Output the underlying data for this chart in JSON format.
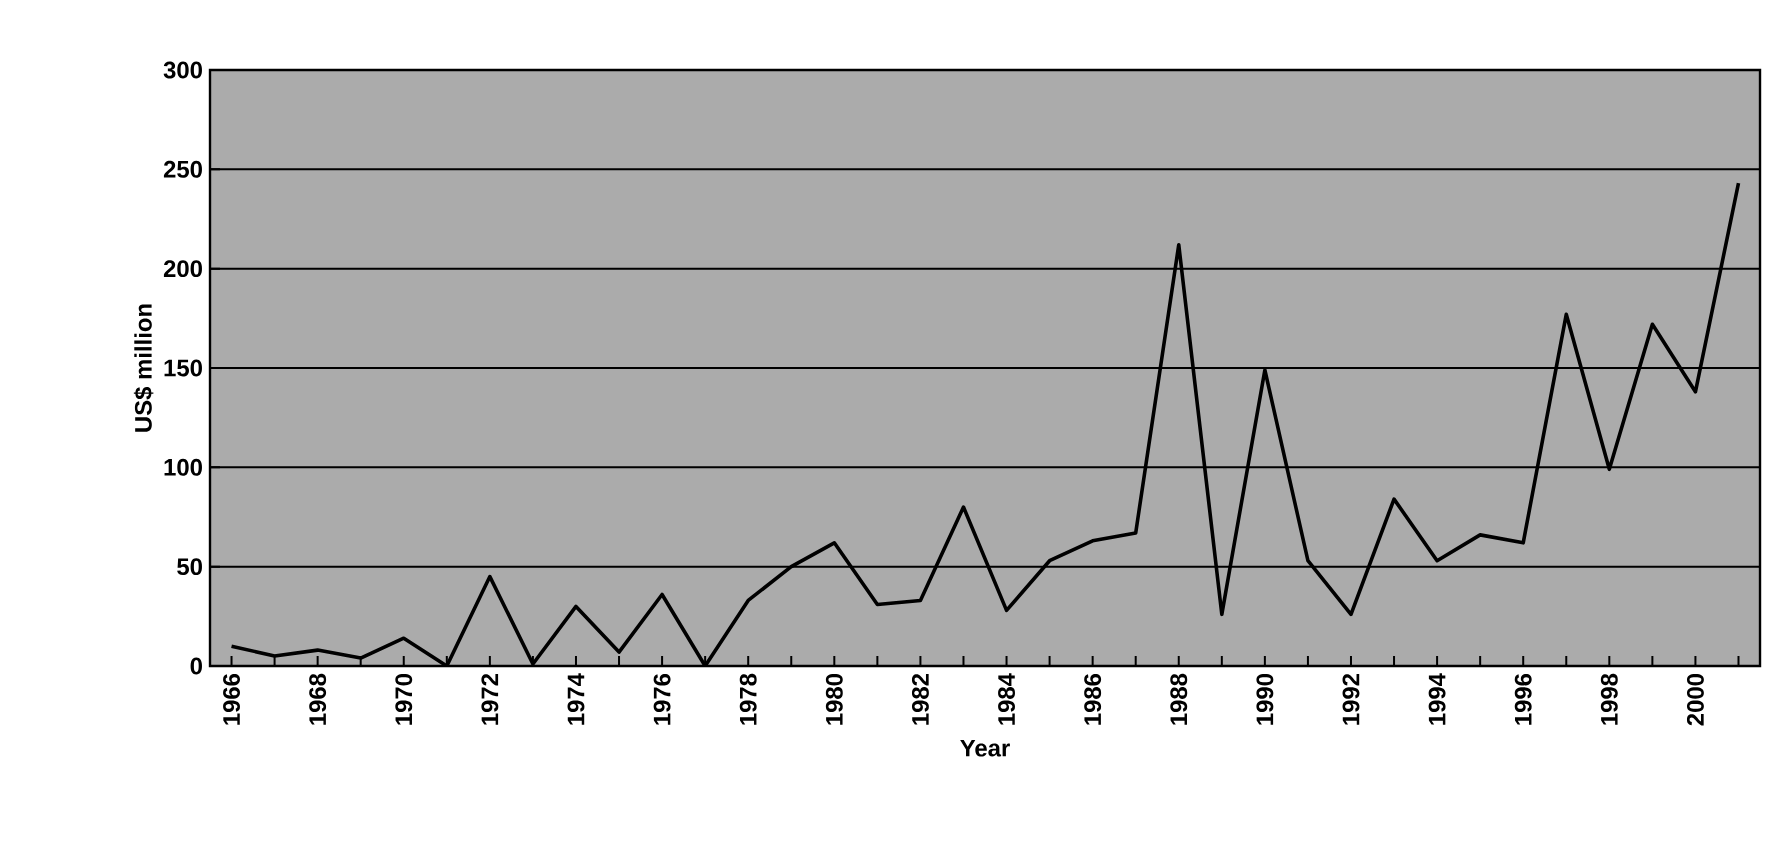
{
  "chart_data": {
    "type": "line",
    "xlabel": "Year",
    "ylabel": "US$ million",
    "categories": [
      "1966",
      null,
      "1968",
      null,
      "1970",
      null,
      "1972",
      null,
      "1974",
      null,
      "1976",
      null,
      "1978",
      null,
      "1980",
      null,
      "1982",
      null,
      "1984",
      null,
      "1986",
      null,
      "1988",
      null,
      "1990",
      null,
      "1992",
      null,
      "1994",
      null,
      "1996",
      null,
      "1998",
      null,
      "2000",
      null
    ],
    "series": [
      {
        "color": "#000000",
        "values": [
          10,
          5,
          8,
          4,
          14,
          0,
          45,
          1,
          30,
          7,
          36,
          0,
          33,
          50,
          62,
          31,
          33,
          80,
          28,
          53,
          63,
          67,
          212,
          26,
          149,
          53,
          26,
          84,
          53,
          66,
          62,
          177,
          99,
          172,
          138,
          243
        ]
      }
    ],
    "ylim": [
      0,
      300
    ],
    "yticks": [
      0,
      50,
      100,
      150,
      200,
      250,
      300
    ],
    "grid": "y",
    "marker": "none",
    "line_style": "solid"
  }
}
